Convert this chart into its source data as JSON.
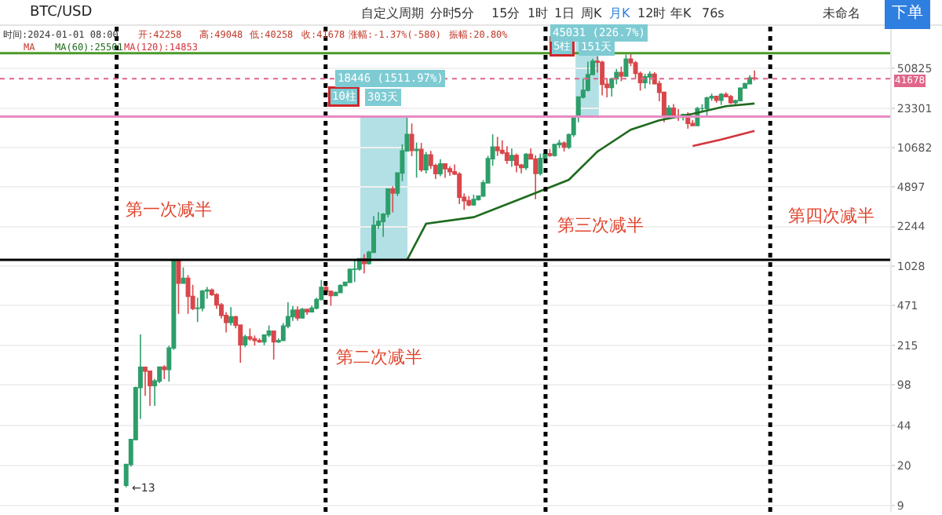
{
  "chart_data": {
    "type": "candlestick",
    "categories": [
      null,
      null,
      null,
      null,
      null,
      null,
      null,
      null,
      null,
      null,
      null,
      null,
      null,
      null,
      null,
      null,
      null,
      null,
      null,
      null,
      null,
      null,
      null,
      null,
      null,
      null,
      null,
      null,
      null,
      null,
      null,
      null,
      null,
      null,
      null,
      null,
      null,
      null,
      null,
      null,
      null,
      null,
      null,
      null,
      null,
      null,
      null,
      null,
      null,
      null,
      null,
      null,
      null,
      null,
      null,
      null,
      null,
      null,
      null,
      null,
      null,
      null,
      null,
      null,
      null,
      null,
      null,
      null,
      null,
      null,
      null,
      null,
      null,
      null,
      null,
      null,
      null,
      null,
      null,
      null,
      null,
      null,
      null,
      null,
      null,
      null,
      null,
      null,
      null,
      null,
      null,
      null,
      null,
      null,
      null,
      null,
      null,
      null,
      null,
      null,
      null,
      null,
      null,
      null,
      null,
      null,
      null,
      null,
      null,
      null,
      null,
      null,
      null,
      null,
      null,
      null,
      null,
      null,
      null,
      null,
      null,
      null,
      null,
      null,
      null,
      null,
      null,
      null,
      null,
      null,
      null,
      null,
      null,
      null,
      null,
      null,
      null,
      null,
      null,
      null,
      null,
      null,
      null,
      null,
      null,
      null,
      null,
      null,
      null,
      null,
      null,
      null,
      null,
      null,
      null,
      null,
      null,
      null,
      null,
      null,
      null,
      null,
      null,
      null,
      null,
      null,
      null,
      null,
      null,
      null,
      null,
      null,
      null,
      null,
      null,
      null,
      null,
      null,
      null,
      null,
      null,
      null,
      null,
      null,
      null,
      null,
      null
    ],
    "ohlc": [
      null,
      null,
      null,
      null,
      null,
      null,
      null,
      null,
      null,
      null,
      null,
      null,
      null,
      null,
      null,
      null,
      null,
      null,
      null,
      null,
      null,
      null,
      null,
      null,
      null,
      null,
      [
        13.5,
        20.4,
        13,
        20.4
      ],
      [
        20.4,
        33.5,
        19.6,
        33.4
      ],
      [
        33.4,
        95,
        33,
        93
      ],
      [
        93,
        266,
        50,
        139
      ],
      [
        139,
        140,
        79,
        129
      ],
      [
        129,
        130,
        65,
        97
      ],
      [
        97,
        111,
        65,
        106
      ],
      [
        106,
        140,
        102,
        140
      ],
      [
        140,
        145,
        110,
        133
      ],
      [
        133,
        213,
        105,
        204
      ],
      [
        204,
        1163,
        196,
        1130
      ],
      [
        1130,
        1160,
        400,
        732
      ],
      [
        732,
        1000,
        730,
        805
      ],
      [
        805,
        860,
        400,
        565
      ],
      [
        565,
        710,
        430,
        445
      ],
      [
        445,
        550,
        340,
        448
      ],
      [
        448,
        640,
        420,
        628
      ],
      [
        628,
        680,
        540,
        640
      ],
      [
        640,
        660,
        570,
        585
      ],
      [
        585,
        600,
        440,
        477
      ],
      [
        477,
        495,
        365,
        388
      ],
      [
        388,
        415,
        277,
        338
      ],
      [
        338,
        457,
        318,
        377
      ],
      [
        377,
        385,
        300,
        320
      ],
      [
        320,
        320,
        152,
        217
      ],
      [
        217,
        265,
        207,
        254
      ],
      [
        254,
        300,
        235,
        244
      ],
      [
        244,
        261,
        214,
        236
      ],
      [
        236,
        247,
        226,
        230
      ],
      [
        230,
        267,
        215,
        263
      ],
      [
        263,
        318,
        253,
        284
      ],
      [
        284,
        285,
        162,
        230
      ],
      [
        230,
        246,
        225,
        236
      ],
      [
        236,
        334,
        235,
        314
      ],
      [
        314,
        502,
        300,
        378
      ],
      [
        378,
        467,
        348,
        430
      ],
      [
        430,
        463,
        350,
        369
      ],
      [
        369,
        449,
        366,
        437
      ],
      [
        437,
        440,
        392,
        416
      ],
      [
        416,
        470,
        412,
        448
      ],
      [
        448,
        550,
        437,
        531
      ],
      [
        531,
        780,
        520,
        674
      ],
      [
        674,
        700,
        580,
        624
      ],
      [
        624,
        630,
        470,
        574
      ],
      [
        574,
        620,
        570,
        609
      ],
      [
        609,
        720,
        605,
        700
      ],
      [
        700,
        755,
        690,
        745
      ],
      [
        745,
        980,
        740,
        964
      ],
      [
        964,
        1150,
        750,
        968
      ],
      [
        968,
        1200,
        940,
        1190
      ],
      [
        1190,
        1300,
        890,
        1080
      ],
      [
        1080,
        1390,
        1060,
        1350
      ],
      [
        1350,
        2760,
        1340,
        2300
      ],
      [
        2300,
        2980,
        2140,
        2480
      ],
      [
        2480,
        2930,
        1830,
        2870
      ],
      [
        2870,
        4730,
        2690,
        4700
      ],
      [
        4700,
        4980,
        2970,
        4340
      ],
      [
        4340,
        6470,
        4100,
        6460
      ],
      [
        6460,
        11400,
        5500,
        10000
      ],
      [
        10000,
        19666,
        10000,
        13860
      ],
      [
        13860,
        17200,
        9000,
        10100
      ],
      [
        10100,
        11800,
        5900,
        10300
      ],
      [
        10300,
        11700,
        6600,
        6900
      ],
      [
        6900,
        9800,
        6400,
        9240
      ],
      [
        9240,
        9990,
        7000,
        7500
      ],
      [
        7500,
        7780,
        5750,
        6390
      ],
      [
        6390,
        8500,
        6070,
        7730
      ],
      [
        7730,
        7760,
        5880,
        7020
      ],
      [
        7020,
        7400,
        6120,
        6630
      ],
      [
        6630,
        7660,
        6200,
        6330
      ],
      [
        6330,
        6580,
        3500,
        4000
      ],
      [
        4000,
        4320,
        3120,
        3740
      ],
      [
        3740,
        4100,
        3350,
        3440
      ],
      [
        3440,
        4210,
        3380,
        3830
      ],
      [
        3830,
        4130,
        3740,
        4100
      ],
      [
        4100,
        5620,
        4050,
        5320
      ],
      [
        5320,
        9070,
        5320,
        8570
      ],
      [
        8570,
        13880,
        7470,
        10800
      ],
      [
        10800,
        13200,
        9050,
        10100
      ],
      [
        10100,
        12330,
        9330,
        9590
      ],
      [
        9590,
        10950,
        7750,
        8300
      ],
      [
        8300,
        10490,
        7300,
        9150
      ],
      [
        9150,
        9500,
        6550,
        7560
      ],
      [
        7560,
        7750,
        6430,
        7200
      ],
      [
        7200,
        9580,
        6850,
        9350
      ],
      [
        9350,
        10500,
        8450,
        8530
      ],
      [
        8530,
        9180,
        3850,
        6410
      ],
      [
        6410,
        9460,
        6150,
        8630
      ],
      [
        8630,
        10080,
        8100,
        9450
      ],
      [
        9450,
        10380,
        8900,
        9140
      ],
      [
        9140,
        11450,
        8920,
        11340
      ],
      [
        11340,
        12470,
        10560,
        11650
      ],
      [
        11650,
        12060,
        9880,
        10780
      ],
      [
        10780,
        14100,
        10380,
        13800
      ],
      [
        13800,
        19900,
        13200,
        19700
      ],
      [
        19700,
        29300,
        17600,
        29000
      ],
      [
        29000,
        41950,
        28100,
        33100
      ],
      [
        33100,
        58350,
        32300,
        45200
      ],
      [
        45200,
        61800,
        45000,
        58800
      ],
      [
        58800,
        64900,
        47000,
        57700
      ],
      [
        57700,
        59500,
        30000,
        37300
      ],
      [
        37300,
        41300,
        28800,
        35000
      ],
      [
        35000,
        42400,
        29300,
        41500
      ],
      [
        41500,
        50500,
        37300,
        47100
      ],
      [
        47100,
        52900,
        39600,
        43800
      ],
      [
        43800,
        67000,
        43300,
        61300
      ],
      [
        61300,
        69000,
        53300,
        57000
      ],
      [
        57000,
        59100,
        42000,
        46200
      ],
      [
        46200,
        48000,
        32900,
        38500
      ],
      [
        38500,
        45800,
        34300,
        43200
      ],
      [
        43200,
        48200,
        37200,
        45500
      ],
      [
        45500,
        47400,
        37600,
        37700
      ],
      [
        37700,
        40000,
        26700,
        31800
      ],
      [
        31800,
        31900,
        17600,
        19900
      ],
      [
        19900,
        24700,
        18800,
        23300
      ],
      [
        23300,
        25200,
        19600,
        20000
      ],
      [
        20000,
        22800,
        18100,
        19400
      ],
      [
        19400,
        20900,
        18200,
        20500
      ],
      [
        20500,
        21500,
        15500,
        17200
      ],
      [
        17200,
        18400,
        16300,
        16500
      ],
      [
        16500,
        23900,
        16500,
        23100
      ],
      [
        23100,
        25200,
        21400,
        23100
      ],
      [
        23100,
        29200,
        19600,
        28500
      ],
      [
        28500,
        31000,
        26900,
        29300
      ],
      [
        29300,
        29800,
        25900,
        27200
      ],
      [
        27200,
        31400,
        24800,
        30500
      ],
      [
        30500,
        31800,
        28900,
        29200
      ],
      [
        29200,
        30200,
        25200,
        26000
      ],
      [
        26000,
        27500,
        24900,
        27000
      ],
      [
        27000,
        35000,
        26600,
        34600
      ],
      [
        34600,
        38400,
        34100,
        37700
      ],
      [
        37700,
        44700,
        37600,
        42258
      ],
      [
        42258,
        49048,
        40258,
        41678
      ],
      null,
      null,
      null,
      null,
      null,
      null,
      null,
      null,
      null,
      null,
      null,
      null,
      null,
      null,
      null,
      null,
      null,
      null,
      null,
      null,
      null,
      null,
      null,
      null,
      null,
      null,
      null,
      null
    ],
    "colors": [
      null,
      null,
      null,
      null,
      null,
      null,
      null,
      null,
      null,
      null,
      null,
      null,
      null,
      null,
      null,
      null,
      null,
      null,
      null,
      null,
      null,
      null,
      null,
      null,
      null,
      null,
      "#2e9e6a",
      "#2e9e6a",
      "#2e9e6a",
      "#2e9e6a",
      "#d9474b",
      "#d9474b",
      "#2e9e6a",
      "#2e9e6a",
      "#d9474b",
      "#2e9e6a",
      "#2e9e6a",
      "#d9474b",
      "#2e9e6a",
      "#d9474b",
      "#d9474b",
      "#2e9e6a",
      "#2e9e6a",
      "#2e9e6a",
      "#d9474b",
      "#d9474b",
      "#d9474b",
      "#d9474b",
      "#2e9e6a",
      "#d9474b",
      "#d9474b",
      "#2e9e6a",
      "#d9474b",
      "#d9474b",
      "#d9474b",
      "#2e9e6a",
      "#2e9e6a",
      "#d9474b",
      "#2e9e6a",
      "#2e9e6a",
      "#2e9e6a",
      "#2e9e6a",
      "#d9474b",
      "#2e9e6a",
      "#d9474b",
      "#2e9e6a",
      "#2e9e6a",
      "#2e9e6a",
      "#d9474b",
      "#d9474b",
      "#2e9e6a",
      "#2e9e6a",
      "#2e9e6a",
      "#2e9e6a",
      "#2e9e6a",
      "#2e9e6a",
      "#d9474b",
      "#2e9e6a",
      "#2e9e6a",
      "#2e9e6a",
      "#2e9e6a",
      "#2e9e6a",
      "#d9474b",
      "#2e9e6a",
      "#2e9e6a",
      "#2e9e6a",
      "#d9474b",
      "#2e9e6a",
      "#d9474b",
      "#2e9e6a",
      "#d9474b",
      "#d9474b",
      "#2e9e6a",
      "#d9474b",
      "#d9474b",
      "#d9474b",
      "#d9474b",
      "#d9474b",
      "#d9474b",
      "#2e9e6a",
      "#2e9e6a",
      "#2e9e6a",
      "#2e9e6a",
      "#2e9e6a",
      "#d9474b",
      "#d9474b",
      "#d9474b",
      "#2e9e6a",
      "#d9474b",
      "#d9474b",
      "#2e9e6a",
      "#d9474b",
      "#d9474b",
      "#2e9e6a",
      "#2e9e6a",
      "#d9474b",
      "#2e9e6a",
      "#2e9e6a",
      "#d9474b",
      "#2e9e6a",
      "#2e9e6a",
      "#2e9e6a",
      "#2e9e6a",
      "#2e9e6a",
      "#2e9e6a",
      "#d9474b",
      "#d9474b",
      "#d9474b",
      "#2e9e6a",
      "#2e9e6a",
      "#d9474b",
      "#2e9e6a",
      "#d9474b",
      "#d9474b",
      "#d9474b",
      "#2e9e6a",
      "#2e9e6a",
      "#d9474b",
      "#d9474b",
      "#d9474b",
      "#2e9e6a",
      "#d9474b",
      "#d9474b",
      "#2e9e6a",
      "#d9474b",
      "#d9474b",
      "#2e9e6a",
      "#2e9e6a",
      "#2e9e6a",
      "#2e9e6a",
      "#d9474b",
      "#2e9e6a",
      "#d9474b",
      "#d9474b",
      "#2e9e6a",
      "#2e9e6a",
      "#2e9e6a",
      "#2e9e6a",
      "#d9474b",
      null,
      null,
      null,
      null,
      null,
      null,
      null,
      null,
      null,
      null,
      null,
      null,
      null,
      null,
      null,
      null,
      null,
      null,
      null,
      null,
      null,
      null,
      null,
      null,
      null,
      null,
      null,
      null
    ],
    "series": [
      {
        "name": "MA(60):25501",
        "type": "line",
        "color": "#1f6b1f",
        "values": [
          null,
          null,
          null,
          null,
          null,
          null,
          null,
          null,
          null,
          null,
          null,
          null,
          null,
          null,
          null,
          null,
          null,
          null,
          null,
          null,
          null,
          null,
          null,
          null,
          null,
          null,
          null,
          null,
          null,
          null,
          null,
          null,
          null,
          null,
          null,
          null,
          null,
          null,
          null,
          null,
          null,
          null,
          null,
          null,
          null,
          null,
          null,
          null,
          null,
          null,
          null,
          null,
          null,
          null,
          null,
          null,
          null,
          null,
          null,
          null,
          null,
          null,
          null,
          null,
          null,
          null,
          null,
          null,
          null,
          null,
          null,
          null,
          null,
          null,
          null,
          null,
          null,
          null,
          null,
          null,
          null,
          null,
          null,
          null,
          null,
          1160,
          null,
          null,
          null,
          2370,
          null,
          null,
          null,
          null,
          null,
          null,
          null,
          null,
          null,
          2700,
          null,
          null,
          null,
          null,
          null,
          null,
          null,
          null,
          null,
          3900,
          null,
          null,
          null,
          null,
          null,
          null,
          null,
          null,
          null,
          5650,
          null,
          null,
          null,
          null,
          null,
          9870,
          null,
          null,
          null,
          null,
          null,
          null,
          15200,
          null,
          null,
          null,
          null,
          null,
          18300,
          null,
          null,
          null,
          null,
          null,
          null,
          20800,
          null,
          null,
          null,
          null,
          null,
          null,
          24200,
          null,
          null,
          null,
          null,
          null,
          25501,
          null,
          null,
          null,
          null,
          null,
          null,
          null,
          null,
          null,
          null,
          null,
          null,
          null,
          null,
          null,
          null,
          null,
          null,
          null,
          null,
          null,
          null,
          null,
          null,
          null,
          null,
          null,
          null
        ]
      },
      {
        "name": "MA(120):14853",
        "type": "line",
        "color": "#d2343b",
        "values": [
          null,
          null,
          null,
          null,
          null,
          null,
          null,
          null,
          null,
          null,
          null,
          null,
          null,
          null,
          null,
          null,
          null,
          null,
          null,
          null,
          null,
          null,
          null,
          null,
          null,
          null,
          null,
          null,
          null,
          null,
          null,
          null,
          null,
          null,
          null,
          null,
          null,
          null,
          null,
          null,
          null,
          null,
          null,
          null,
          null,
          null,
          null,
          null,
          null,
          null,
          null,
          null,
          null,
          null,
          null,
          null,
          null,
          null,
          null,
          null,
          null,
          null,
          null,
          null,
          null,
          null,
          null,
          null,
          null,
          null,
          null,
          null,
          null,
          null,
          null,
          null,
          null,
          null,
          null,
          null,
          null,
          null,
          null,
          null,
          null,
          null,
          null,
          null,
          null,
          null,
          null,
          null,
          null,
          null,
          null,
          null,
          null,
          null,
          null,
          null,
          null,
          null,
          null,
          null,
          null,
          null,
          null,
          null,
          null,
          null,
          null,
          null,
          null,
          null,
          null,
          null,
          null,
          null,
          null,
          null,
          null,
          null,
          null,
          null,
          null,
          null,
          null,
          null,
          null,
          null,
          null,
          null,
          null,
          null,
          null,
          null,
          null,
          null,
          null,
          null,
          null,
          null,
          null,
          null,
          null,
          11000,
          null,
          null,
          null,
          null,
          null,
          12500,
          null,
          null,
          null,
          null,
          null,
          null,
          14853,
          null,
          null,
          null,
          null,
          null,
          null,
          null,
          null,
          null,
          null,
          null,
          null,
          null,
          null,
          null,
          null,
          null,
          null,
          null,
          null,
          null,
          null,
          null,
          null,
          null,
          null,
          null,
          null
        ]
      }
    ],
    "ylim": [
      8,
      120000
    ],
    "yticks": [
      9,
      20,
      44,
      98,
      215,
      471,
      1028,
      2244,
      4897,
      10682,
      23301,
      50825
    ],
    "log": "y",
    "grid": "y",
    "tick_labels": "y",
    "ref_lines": [
      {
        "axis": "y",
        "value": 1160,
        "color": "#000000",
        "line_style": "solid"
      },
      {
        "axis": "y",
        "value": 19666,
        "color": "#e68ac2",
        "line_style": "solid"
      },
      {
        "axis": "y",
        "value": 69000,
        "color": "#4c9a2a",
        "line_style": "solid"
      },
      {
        "axis": "y",
        "value": 41678,
        "label": "41678",
        "color": "#e0668a",
        "line_style": "dotted"
      }
    ],
    "annotations": [
      "BTC/USD",
      "自定义周期",
      "分时",
      "5分",
      "15分",
      "1时",
      "1日",
      "周K",
      "月K",
      "12时",
      "年K",
      "76s",
      "未命名",
      "下单",
      "时间:2024-01-01 08:00",
      "开:42258",
      "高:49048",
      "低:40258",
      "收:41678",
      "涨幅:-1.37%(-580)",
      "振幅:20.80%",
      "MA",
      "10柱",
      "303天",
      "5柱",
      "151天",
      "第一次减半",
      "第二次减半",
      "第三次减半",
      "第四次减半",
      "18446 (1511.97%)",
      "45031 (226.7%)",
      "←13"
    ]
  }
}
